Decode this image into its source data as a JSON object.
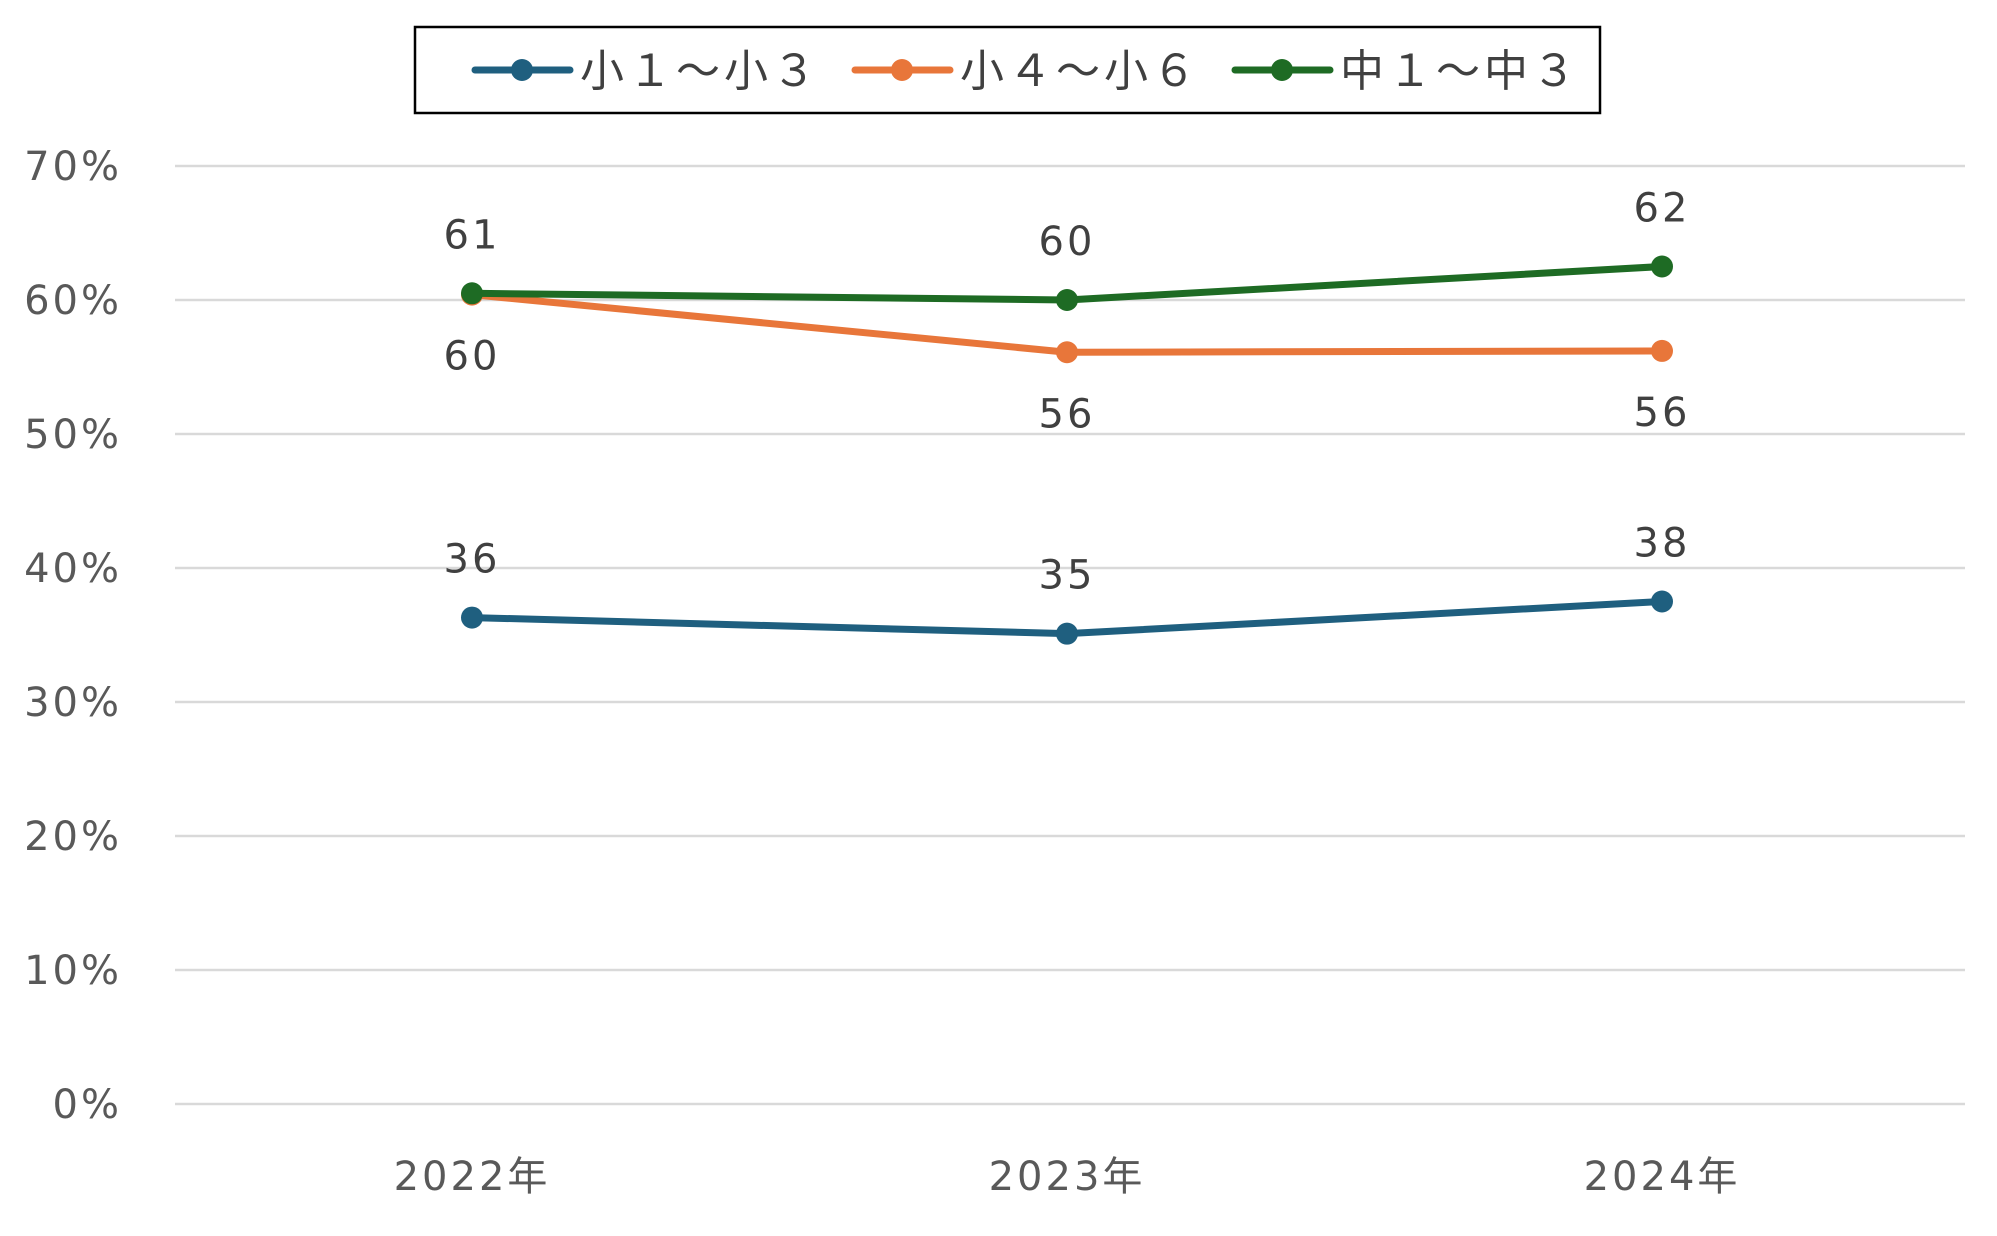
{
  "chart_data": {
    "type": "line",
    "title": "",
    "xlabel": "",
    "ylabel": "",
    "categories": [
      "2022年",
      "2023年",
      "2024年"
    ],
    "y_unit": "percent",
    "ylim": [
      0,
      70
    ],
    "yticks": [
      0,
      10,
      20,
      30,
      40,
      50,
      60,
      70
    ],
    "ytick_labels": [
      "0%",
      "10%",
      "20%",
      "30%",
      "40%",
      "50%",
      "60%",
      "70%"
    ],
    "grid": "horizontal",
    "legend_position": "top-center",
    "series": [
      {
        "name": "小１～小３",
        "color": "#1f5f7f",
        "values": [
          36.3,
          35.1,
          37.5
        ],
        "data_labels": [
          "36",
          "35",
          "38"
        ],
        "label_position": "above"
      },
      {
        "name": "小４～小６",
        "color": "#e8763a",
        "values": [
          60.4,
          56.1,
          56.2
        ],
        "data_labels": [
          "60",
          "56",
          "56"
        ],
        "label_position": "below"
      },
      {
        "name": "中１～中３",
        "color": "#1e6b24",
        "values": [
          60.5,
          60.0,
          62.5
        ],
        "data_labels": [
          "61",
          "60",
          "62"
        ],
        "label_position": "above"
      }
    ]
  }
}
